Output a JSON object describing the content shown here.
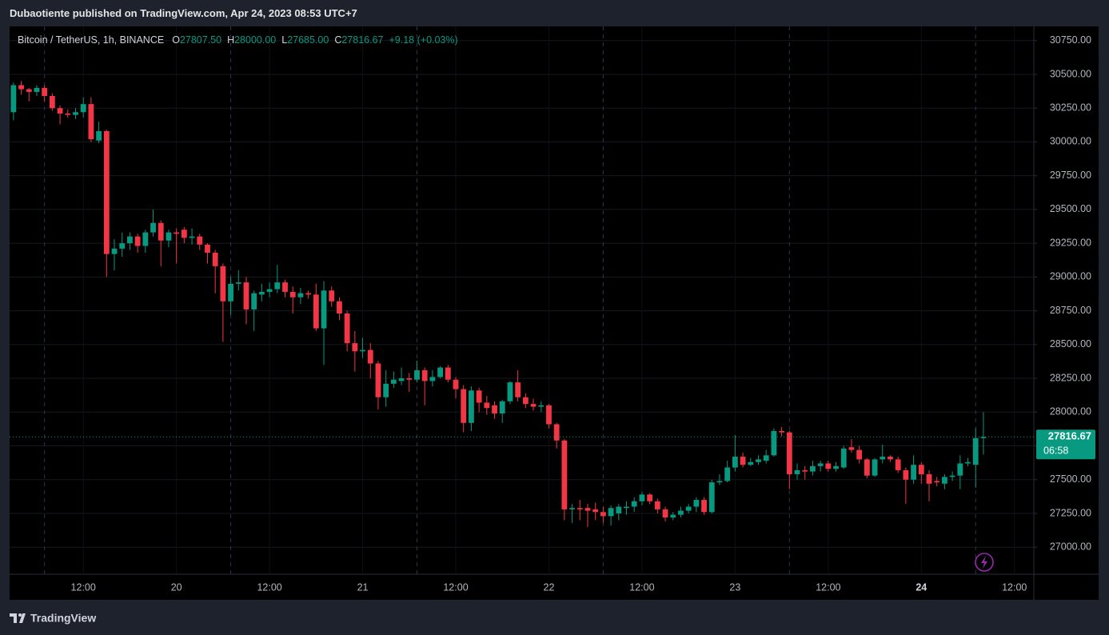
{
  "header": {
    "text": "Dubaotiente published on TradingView.com, Apr 24, 2023 08:53 UTC+7"
  },
  "legend": {
    "symbol": "Bitcoin / TetherUS, 1h, BINANCE",
    "fields": [
      {
        "key": "O",
        "value": "27807.50"
      },
      {
        "key": "H",
        "value": "28000.00"
      },
      {
        "key": "L",
        "value": "27685.00"
      },
      {
        "key": "C",
        "value": "27816.67"
      }
    ],
    "change": "+9.18 (+0.03%)"
  },
  "chart_data": {
    "type": "candlestick",
    "categories": [
      null,
      null,
      null,
      null,
      null,
      null,
      null,
      null,
      null,
      "12:00",
      null,
      null,
      null,
      null,
      null,
      null,
      null,
      null,
      null,
      null,
      null,
      "20",
      null,
      null,
      null,
      null,
      null,
      null,
      null,
      null,
      null,
      null,
      null,
      "12:00",
      null,
      null,
      null,
      null,
      null,
      null,
      null,
      null,
      null,
      null,
      null,
      "21",
      null,
      null,
      null,
      null,
      null,
      null,
      null,
      null,
      null,
      null,
      null,
      "12:00",
      null,
      null,
      null,
      null,
      null,
      null,
      null,
      null,
      null,
      null,
      null,
      "22",
      null,
      null,
      null,
      null,
      null,
      null,
      null,
      null,
      null,
      null,
      null,
      "12:00",
      null,
      null,
      null,
      null,
      null,
      null,
      null,
      null,
      null,
      null,
      null,
      "23",
      null,
      null,
      null,
      null,
      null,
      null,
      null,
      null,
      null,
      null,
      null,
      "12:00",
      null,
      null,
      null,
      null,
      null,
      null,
      null,
      null,
      null,
      null,
      null,
      "24",
      null,
      null,
      null,
      null,
      null,
      null,
      null,
      null,
      null,
      null,
      null,
      "12:00",
      null,
      null
    ],
    "open": [
      30220,
      30420,
      30390,
      30370,
      30400,
      30340,
      30250,
      30210,
      30200,
      30220,
      30280,
      30010,
      30080,
      29170,
      29210,
      29250,
      29300,
      29230,
      29330,
      29400,
      29270,
      29330,
      29350,
      29290,
      29300,
      29240,
      29180,
      29080,
      28820,
      28950,
      28960,
      28760,
      28870,
      28890,
      28910,
      28960,
      28890,
      28850,
      28880,
      28870,
      28620,
      28900,
      28820,
      28730,
      28510,
      28450,
      28460,
      28360,
      28110,
      28210,
      28230,
      28250,
      28240,
      28310,
      28230,
      28260,
      28330,
      28240,
      28170,
      27920,
      28160,
      28070,
      28050,
      27990,
      28080,
      28220,
      28110,
      28060,
      28040,
      28050,
      27910,
      27790,
      27280,
      27290,
      27290,
      27280,
      27260,
      27230,
      27250,
      27290,
      27300,
      27340,
      27390,
      27340,
      27280,
      27220,
      27240,
      27270,
      27300,
      27350,
      27260,
      27480,
      27490,
      27590,
      27670,
      27610,
      27630,
      27640,
      27680,
      27860,
      27850,
      27540,
      27570,
      27560,
      27600,
      27620,
      27580,
      27590,
      27740,
      27720,
      27650,
      27530,
      27650,
      27670,
      27650,
      27570,
      27500,
      27610,
      27540,
      27490,
      27470,
      27520,
      27530,
      27620,
      27610,
      27807.5,
      null,
      null,
      null,
      null,
      null,
      null
    ],
    "high": [
      30440,
      30450,
      30400,
      30420,
      30420,
      30360,
      30270,
      30240,
      30250,
      30330,
      30330,
      30150,
      30090,
      29280,
      29330,
      29330,
      29320,
      29350,
      29500,
      29420,
      29350,
      29360,
      29370,
      29360,
      29320,
      29250,
      29200,
      29100,
      29000,
      29050,
      29000,
      28900,
      28950,
      28960,
      29090,
      28980,
      28930,
      28920,
      28900,
      28950,
      28970,
      28930,
      28850,
      28750,
      28600,
      28550,
      28510,
      28380,
      28310,
      28300,
      28330,
      28290,
      28380,
      28330,
      28310,
      28340,
      28350,
      28260,
      28200,
      28190,
      28180,
      28120,
      28080,
      28090,
      28230,
      28310,
      28140,
      28100,
      28080,
      28060,
      27920,
      27800,
      27320,
      27350,
      27320,
      27330,
      27300,
      27310,
      27320,
      27340,
      27370,
      27410,
      27400,
      27360,
      27300,
      27260,
      27300,
      27320,
      27370,
      27370,
      27500,
      27540,
      27640,
      27830,
      27700,
      27660,
      27680,
      27720,
      27880,
      27890,
      27860,
      27620,
      27600,
      27640,
      27640,
      27640,
      27630,
      27750,
      27800,
      27750,
      27660,
      27660,
      27760,
      27680,
      27670,
      27590,
      27680,
      27630,
      27570,
      27520,
      27540,
      27560,
      27680,
      27660,
      27880,
      28000,
      null,
      null,
      null,
      null,
      null,
      null
    ],
    "low": [
      30160,
      30350,
      30300,
      30340,
      30300,
      30230,
      30130,
      30180,
      30170,
      30180,
      30000,
      29990,
      29000,
      29050,
      29150,
      29200,
      29180,
      29180,
      29300,
      29080,
      29220,
      29100,
      29250,
      29240,
      29200,
      29100,
      28880,
      28520,
      28720,
      28900,
      28650,
      28600,
      28820,
      28850,
      28880,
      28850,
      28730,
      28800,
      28840,
      28600,
      28350,
      28780,
      28680,
      28450,
      28300,
      28400,
      28250,
      28020,
      28040,
      28180,
      28200,
      28150,
      28220,
      28050,
      28190,
      28250,
      28220,
      28100,
      27850,
      27860,
      28000,
      27980,
      27950,
      27920,
      28060,
      28080,
      28030,
      28010,
      28000,
      27880,
      27730,
      27200,
      27180,
      27200,
      27150,
      27200,
      27180,
      27160,
      27200,
      27240,
      27260,
      27310,
      27320,
      27250,
      27190,
      27200,
      27220,
      27250,
      27260,
      27240,
      27250,
      27460,
      27480,
      27560,
      27590,
      27600,
      27610,
      27620,
      27670,
      27820,
      27430,
      27500,
      27500,
      27530,
      27560,
      27560,
      27560,
      27580,
      27700,
      27620,
      27510,
      27520,
      27620,
      27630,
      27550,
      27320,
      27470,
      27470,
      27340,
      27450,
      27430,
      27490,
      27430,
      27600,
      27440,
      27685,
      null,
      null,
      null,
      null,
      null,
      null
    ],
    "close": [
      30420,
      30390,
      30370,
      30400,
      30340,
      30250,
      30210,
      30200,
      30220,
      30280,
      30020,
      30080,
      29170,
      29210,
      29250,
      29300,
      29230,
      29330,
      29400,
      29270,
      29330,
      29320,
      29290,
      29300,
      29240,
      29180,
      29080,
      28820,
      28950,
      28960,
      28760,
      28880,
      28890,
      28910,
      28960,
      28890,
      28850,
      28880,
      28870,
      28620,
      28900,
      28820,
      28730,
      28510,
      28450,
      28460,
      28360,
      28110,
      28210,
      28240,
      28250,
      28240,
      28310,
      28230,
      28260,
      28330,
      28240,
      28170,
      27920,
      28160,
      28070,
      28030,
      27990,
      28080,
      28220,
      28110,
      28060,
      28040,
      28050,
      27910,
      27790,
      27280,
      27290,
      27280,
      27270,
      27260,
      27230,
      27290,
      27300,
      27300,
      27340,
      27390,
      27340,
      27280,
      27220,
      27240,
      27270,
      27300,
      27350,
      27260,
      27480,
      27490,
      27590,
      27670,
      27610,
      27630,
      27650,
      27680,
      27860,
      27850,
      27540,
      27570,
      27560,
      27600,
      27620,
      27580,
      27600,
      27730,
      27720,
      27650,
      27530,
      27650,
      27670,
      27650,
      27570,
      27500,
      27610,
      27540,
      27470,
      27480,
      27520,
      27530,
      27620,
      27630,
      27807.5,
      27816.67,
      null,
      null,
      null,
      null,
      null,
      null
    ],
    "up_color": "#089981",
    "down_color": "#f23645",
    "ylim": [
      26800,
      30855
    ],
    "yticks": [
      {
        "value": 27000,
        "label": "27000.00"
      },
      {
        "value": 27250,
        "label": "27250.00"
      },
      {
        "value": 27500,
        "label": "27500.00"
      },
      {
        "value": 27750,
        "label": "27750.00"
      },
      {
        "value": 28000,
        "label": "28000.00"
      },
      {
        "value": 28250,
        "label": "28250.00"
      },
      {
        "value": 28500,
        "label": "28500.00"
      },
      {
        "value": 28750,
        "label": "28750.00"
      },
      {
        "value": 29000,
        "label": "29000.00"
      },
      {
        "value": 29250,
        "label": "29250.00"
      },
      {
        "value": 29500,
        "label": "29500.00"
      },
      {
        "value": 29750,
        "label": "29750.00"
      },
      {
        "value": 30000,
        "label": "30000.00"
      },
      {
        "value": 30250,
        "label": "30250.00"
      },
      {
        "value": 30500,
        "label": "30500.00"
      },
      {
        "value": 30750,
        "label": "30750.00"
      }
    ],
    "grid": true,
    "last_price": 27816.67,
    "countdown": "06:58"
  },
  "footer": {
    "brand": "TradingView"
  }
}
